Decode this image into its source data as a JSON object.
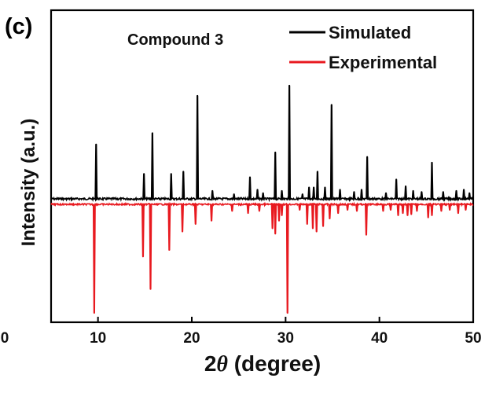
{
  "chart_data": {
    "type": "line",
    "panel_label": "(c)",
    "title": "Compound 3",
    "xlabel": "2θ (degree)",
    "xlabel_parts": {
      "symbol_prefix": "2",
      "symbol": "θ",
      "text": " (degree)"
    },
    "ylabel": "Intensity (a.u.)",
    "xlim": [
      5,
      50
    ],
    "xticks": [
      0,
      10,
      20,
      30,
      40,
      50
    ],
    "grid": false,
    "legend_position": "top-right",
    "series": [
      {
        "name": "Simulated",
        "color": "#000000",
        "baseline": 0,
        "direction": "up",
        "peaks": [
          [
            9.8,
            0.48
          ],
          [
            14.9,
            0.22
          ],
          [
            15.8,
            0.58
          ],
          [
            17.8,
            0.22
          ],
          [
            19.1,
            0.24
          ],
          [
            20.6,
            0.91
          ],
          [
            22.2,
            0.07
          ],
          [
            24.5,
            0.04
          ],
          [
            26.2,
            0.19
          ],
          [
            27.0,
            0.08
          ],
          [
            27.6,
            0.05
          ],
          [
            28.9,
            0.41
          ],
          [
            29.6,
            0.07
          ],
          [
            30.4,
            1.0
          ],
          [
            31.8,
            0.04
          ],
          [
            32.5,
            0.1
          ],
          [
            33.0,
            0.1
          ],
          [
            33.4,
            0.24
          ],
          [
            34.2,
            0.1
          ],
          [
            34.9,
            0.83
          ],
          [
            35.8,
            0.08
          ],
          [
            37.3,
            0.06
          ],
          [
            38.1,
            0.08
          ],
          [
            38.7,
            0.37
          ],
          [
            40.7,
            0.05
          ],
          [
            41.8,
            0.17
          ],
          [
            42.8,
            0.11
          ],
          [
            43.6,
            0.07
          ],
          [
            44.5,
            0.06
          ],
          [
            45.6,
            0.32
          ],
          [
            46.8,
            0.06
          ],
          [
            48.2,
            0.07
          ],
          [
            49.0,
            0.08
          ],
          [
            49.6,
            0.05
          ]
        ]
      },
      {
        "name": "Experimental",
        "color": "#e8191f",
        "baseline": 0,
        "direction": "down",
        "peaks": [
          [
            9.6,
            1.0
          ],
          [
            14.8,
            0.48
          ],
          [
            15.6,
            0.78
          ],
          [
            17.6,
            0.42
          ],
          [
            19.0,
            0.25
          ],
          [
            20.4,
            0.18
          ],
          [
            22.1,
            0.15
          ],
          [
            24.3,
            0.06
          ],
          [
            26.0,
            0.08
          ],
          [
            27.2,
            0.06
          ],
          [
            28.6,
            0.22
          ],
          [
            28.9,
            0.27
          ],
          [
            29.3,
            0.15
          ],
          [
            29.6,
            0.1
          ],
          [
            30.2,
            1.0
          ],
          [
            31.5,
            0.05
          ],
          [
            32.3,
            0.18
          ],
          [
            32.9,
            0.22
          ],
          [
            33.3,
            0.25
          ],
          [
            34.0,
            0.2
          ],
          [
            34.7,
            0.13
          ],
          [
            35.6,
            0.08
          ],
          [
            36.6,
            0.05
          ],
          [
            37.6,
            0.06
          ],
          [
            38.6,
            0.28
          ],
          [
            40.4,
            0.06
          ],
          [
            41.2,
            0.05
          ],
          [
            42.0,
            0.1
          ],
          [
            42.5,
            0.08
          ],
          [
            43.0,
            0.1
          ],
          [
            43.4,
            0.09
          ],
          [
            44.0,
            0.06
          ],
          [
            45.2,
            0.12
          ],
          [
            45.6,
            0.1
          ],
          [
            46.6,
            0.06
          ],
          [
            47.5,
            0.05
          ],
          [
            48.4,
            0.08
          ],
          [
            49.2,
            0.05
          ]
        ]
      }
    ]
  }
}
